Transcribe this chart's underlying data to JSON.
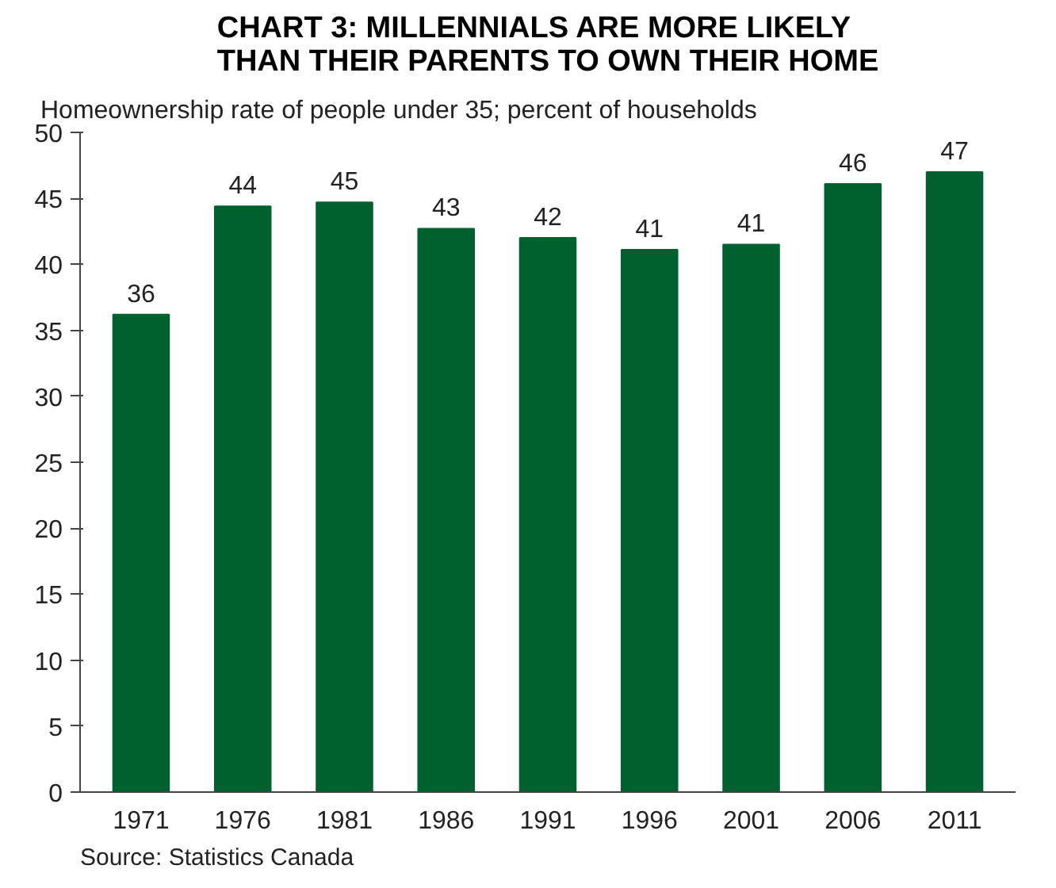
{
  "chart_data": {
    "type": "bar",
    "title": "CHART 3: MILLENNIALS ARE MORE LIKELY\nTHAN THEIR PARENTS TO OWN THEIR HOME",
    "subtitle": "Homeownership rate of people under 35; percent of households",
    "categories": [
      "1971",
      "1976",
      "1981",
      "1986",
      "1991",
      "1996",
      "2001",
      "2006",
      "2011"
    ],
    "values": [
      36.2,
      44.4,
      44.7,
      42.7,
      42.0,
      41.1,
      41.5,
      46.1,
      47.0
    ],
    "value_labels": [
      "36",
      "44",
      "45",
      "43",
      "42",
      "41",
      "41",
      "46",
      "47"
    ],
    "color": "#00612e",
    "ylim": [
      0,
      50
    ],
    "yticks": [
      0,
      5,
      10,
      15,
      20,
      25,
      30,
      35,
      40,
      45,
      50
    ],
    "grid": false,
    "annotations": [
      "Source: Statistics Canada"
    ]
  }
}
